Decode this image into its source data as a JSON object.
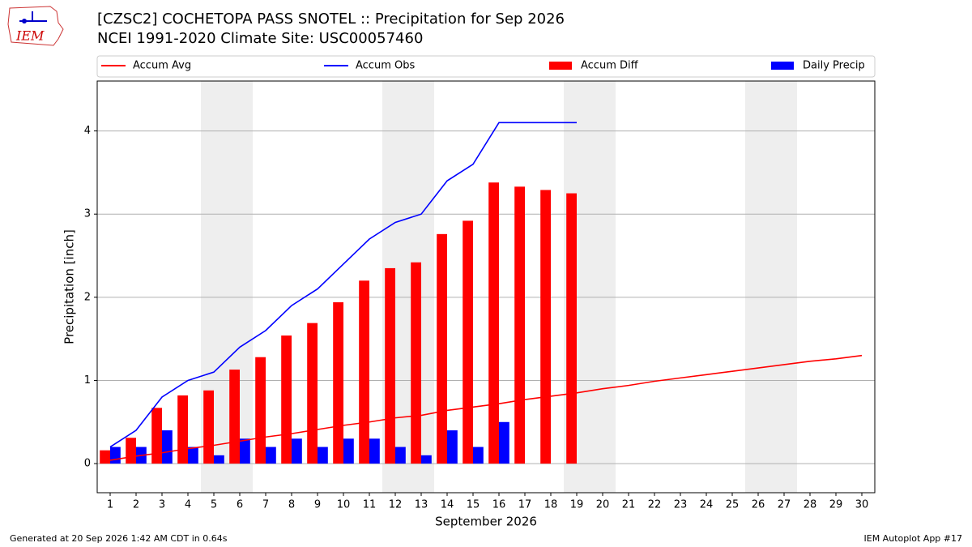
{
  "logo_text": "IEM",
  "footer": {
    "left": "Generated at 20 Sep 2026 1:42 AM CDT in 0.64s",
    "right": "IEM Autoplot App #17"
  },
  "chart_data": {
    "type": "bar",
    "title": "[CZSC2] COCHETOPA PASS SNOTEL :: Precipitation for Sep 2026",
    "subtitle": "NCEI 1991-2020 Climate Site: USC00057460",
    "ylabel": "Precipitation [inch]",
    "xlabel": "September 2026",
    "x": [
      1,
      2,
      3,
      4,
      5,
      6,
      7,
      8,
      9,
      10,
      11,
      12,
      13,
      14,
      15,
      16,
      17,
      18,
      19,
      20,
      21,
      22,
      23,
      24,
      25,
      26,
      27,
      28,
      29,
      30
    ],
    "xlim": [
      0.5,
      30.5
    ],
    "xticks": [
      1,
      2,
      3,
      4,
      5,
      6,
      7,
      8,
      9,
      10,
      11,
      12,
      13,
      14,
      15,
      16,
      17,
      18,
      19,
      20,
      21,
      22,
      23,
      24,
      25,
      26,
      27,
      28,
      29,
      30
    ],
    "ylim": [
      -0.35,
      4.6
    ],
    "yticks": [
      0,
      1,
      2,
      3,
      4
    ],
    "grid": true,
    "shaded_days": [
      [
        5,
        6
      ],
      [
        12,
        13
      ],
      [
        19,
        20
      ],
      [
        26,
        27
      ]
    ],
    "series": [
      {
        "name": "Accum Avg",
        "kind": "line",
        "color": "#ff0000",
        "values": [
          0.04,
          0.09,
          0.13,
          0.18,
          0.22,
          0.27,
          0.32,
          0.36,
          0.41,
          0.46,
          0.5,
          0.55,
          0.58,
          0.64,
          0.68,
          0.72,
          0.77,
          0.81,
          0.85,
          0.9,
          0.94,
          0.99,
          1.03,
          1.07,
          1.11,
          1.15,
          1.19,
          1.23,
          1.26,
          1.3
        ]
      },
      {
        "name": "Accum Obs",
        "kind": "line",
        "color": "#0000ff",
        "values": [
          0.2,
          0.4,
          0.8,
          1.0,
          1.1,
          1.4,
          1.6,
          1.9,
          2.1,
          2.4,
          2.7,
          2.9,
          3.0,
          3.4,
          3.6,
          4.1,
          4.1,
          4.1,
          4.1,
          null,
          null,
          null,
          null,
          null,
          null,
          null,
          null,
          null,
          null,
          null
        ]
      },
      {
        "name": "Accum Diff",
        "kind": "bar",
        "color": "#ff0000",
        "values": [
          0.16,
          0.31,
          0.67,
          0.82,
          0.88,
          1.13,
          1.28,
          1.54,
          1.69,
          1.94,
          2.2,
          2.35,
          2.42,
          2.76,
          2.92,
          3.38,
          3.33,
          3.29,
          3.25,
          null,
          null,
          null,
          null,
          null,
          null,
          null,
          null,
          null,
          null,
          null
        ]
      },
      {
        "name": "Daily Precip",
        "kind": "bar",
        "color": "#0000ff",
        "values": [
          0.2,
          0.2,
          0.4,
          0.2,
          0.1,
          0.3,
          0.2,
          0.3,
          0.2,
          0.3,
          0.3,
          0.2,
          0.1,
          0.4,
          0.2,
          0.5,
          0,
          0,
          0,
          null,
          null,
          null,
          null,
          null,
          null,
          null,
          null,
          null,
          null,
          null
        ]
      }
    ]
  }
}
